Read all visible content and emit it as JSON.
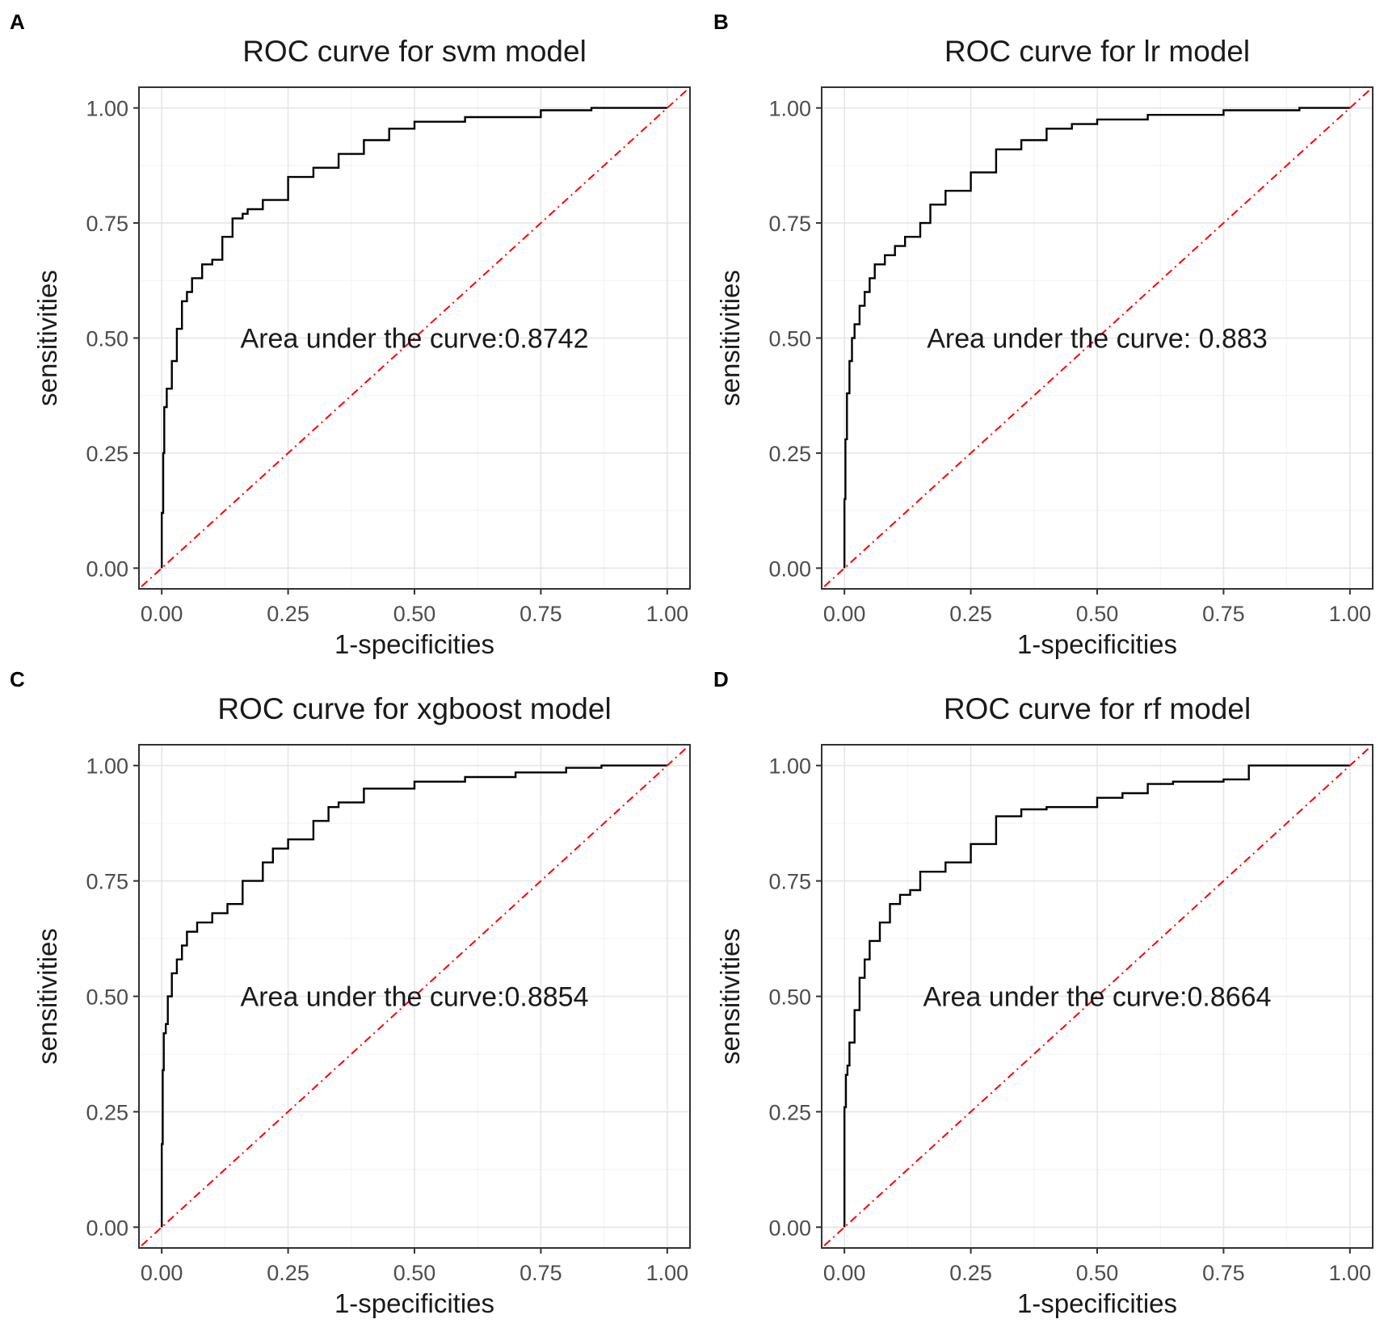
{
  "figure": {
    "background": "#ffffff"
  },
  "chart_data": [
    {
      "panel": "A",
      "type": "line",
      "title": "ROC curve for svm model",
      "xlabel": "1-specificities",
      "ylabel": "sensitivities",
      "xlim": [
        0,
        1
      ],
      "ylim": [
        0,
        1
      ],
      "x_ticks": [
        "0.00",
        "0.25",
        "0.50",
        "0.75",
        "1.00"
      ],
      "y_ticks": [
        "0.00",
        "0.25",
        "0.50",
        "0.75",
        "1.00"
      ],
      "annotation": "Area under the curve:0.8742",
      "auc": 0.8742,
      "grid": true,
      "series": [
        {
          "name": "ROC",
          "color": "#000000",
          "style": "step",
          "x": [
            0,
            0.003,
            0.005,
            0.01,
            0.02,
            0.03,
            0.04,
            0.05,
            0.06,
            0.08,
            0.1,
            0.12,
            0.14,
            0.16,
            0.17,
            0.2,
            0.25,
            0.3,
            0.35,
            0.4,
            0.45,
            0.5,
            0.6,
            0.75,
            0.85,
            1.0
          ],
          "y": [
            0,
            0.12,
            0.25,
            0.35,
            0.39,
            0.45,
            0.52,
            0.58,
            0.6,
            0.63,
            0.66,
            0.67,
            0.72,
            0.76,
            0.77,
            0.78,
            0.8,
            0.85,
            0.87,
            0.9,
            0.93,
            0.955,
            0.97,
            0.98,
            0.995,
            1.0
          ]
        },
        {
          "name": "Reference",
          "color": "#ff0000",
          "style": "dot-dash",
          "x": [
            -0.04,
            1.04
          ],
          "y": [
            -0.04,
            1.04
          ]
        }
      ]
    },
    {
      "panel": "B",
      "type": "line",
      "title": "ROC curve for lr model",
      "xlabel": "1-specificities",
      "ylabel": "sensitivities",
      "xlim": [
        0,
        1
      ],
      "ylim": [
        0,
        1
      ],
      "x_ticks": [
        "0.00",
        "0.25",
        "0.50",
        "0.75",
        "1.00"
      ],
      "y_ticks": [
        "0.00",
        "0.25",
        "0.50",
        "0.75",
        "1.00"
      ],
      "annotation": "Area under the curve: 0.883",
      "auc": 0.883,
      "grid": true,
      "series": [
        {
          "name": "ROC",
          "color": "#000000",
          "style": "step",
          "x": [
            0,
            0.002,
            0.005,
            0.01,
            0.015,
            0.02,
            0.03,
            0.04,
            0.05,
            0.06,
            0.08,
            0.1,
            0.12,
            0.15,
            0.17,
            0.2,
            0.25,
            0.3,
            0.35,
            0.4,
            0.45,
            0.5,
            0.6,
            0.75,
            0.9,
            1.0
          ],
          "y": [
            0,
            0.15,
            0.28,
            0.38,
            0.45,
            0.5,
            0.53,
            0.57,
            0.6,
            0.63,
            0.66,
            0.68,
            0.7,
            0.72,
            0.75,
            0.79,
            0.82,
            0.86,
            0.91,
            0.93,
            0.955,
            0.965,
            0.975,
            0.985,
            0.995,
            1.0
          ]
        },
        {
          "name": "Reference",
          "color": "#ff0000",
          "style": "dot-dash",
          "x": [
            -0.04,
            1.04
          ],
          "y": [
            -0.04,
            1.04
          ]
        }
      ]
    },
    {
      "panel": "C",
      "type": "line",
      "title": "ROC curve for xgboost model",
      "xlabel": "1-specificities",
      "ylabel": "sensitivities",
      "xlim": [
        0,
        1
      ],
      "ylim": [
        0,
        1
      ],
      "x_ticks": [
        "0.00",
        "0.25",
        "0.50",
        "0.75",
        "1.00"
      ],
      "y_ticks": [
        "0.00",
        "0.25",
        "0.50",
        "0.75",
        "1.00"
      ],
      "annotation": "Area under the curve:0.8854",
      "auc": 0.8854,
      "grid": true,
      "series": [
        {
          "name": "ROC",
          "color": "#000000",
          "style": "step",
          "x": [
            0,
            0.002,
            0.004,
            0.008,
            0.012,
            0.02,
            0.03,
            0.04,
            0.05,
            0.07,
            0.1,
            0.13,
            0.16,
            0.2,
            0.22,
            0.25,
            0.3,
            0.33,
            0.35,
            0.4,
            0.5,
            0.6,
            0.7,
            0.8,
            0.87,
            1.0
          ],
          "y": [
            0,
            0.18,
            0.34,
            0.42,
            0.44,
            0.5,
            0.55,
            0.58,
            0.61,
            0.64,
            0.66,
            0.68,
            0.7,
            0.75,
            0.79,
            0.82,
            0.84,
            0.88,
            0.91,
            0.92,
            0.95,
            0.965,
            0.975,
            0.985,
            0.995,
            1.0
          ]
        },
        {
          "name": "Reference",
          "color": "#ff0000",
          "style": "dot-dash",
          "x": [
            -0.04,
            1.04
          ],
          "y": [
            -0.04,
            1.04
          ]
        }
      ]
    },
    {
      "panel": "D",
      "type": "line",
      "title": "ROC curve for rf model",
      "xlabel": "1-specificities",
      "ylabel": "sensitivities",
      "xlim": [
        0,
        1
      ],
      "ylim": [
        0,
        1
      ],
      "x_ticks": [
        "0.00",
        "0.25",
        "0.50",
        "0.75",
        "1.00"
      ],
      "y_ticks": [
        "0.00",
        "0.25",
        "0.50",
        "0.75",
        "1.00"
      ],
      "annotation": "Area under the curve:0.8664",
      "auc": 0.8664,
      "grid": true,
      "series": [
        {
          "name": "ROC",
          "color": "#000000",
          "style": "step",
          "x": [
            0,
            0.003,
            0.006,
            0.01,
            0.02,
            0.03,
            0.04,
            0.05,
            0.07,
            0.09,
            0.11,
            0.13,
            0.15,
            0.2,
            0.25,
            0.3,
            0.35,
            0.4,
            0.5,
            0.55,
            0.6,
            0.65,
            0.75,
            0.8,
            0.85,
            1.0
          ],
          "y": [
            0,
            0.26,
            0.33,
            0.35,
            0.4,
            0.47,
            0.54,
            0.58,
            0.62,
            0.66,
            0.7,
            0.72,
            0.73,
            0.77,
            0.79,
            0.83,
            0.89,
            0.905,
            0.91,
            0.93,
            0.94,
            0.96,
            0.965,
            0.97,
            1.0,
            1.0
          ]
        },
        {
          "name": "Reference",
          "color": "#ff0000",
          "style": "dot-dash",
          "x": [
            -0.04,
            1.04
          ],
          "y": [
            -0.04,
            1.04
          ]
        }
      ]
    }
  ]
}
